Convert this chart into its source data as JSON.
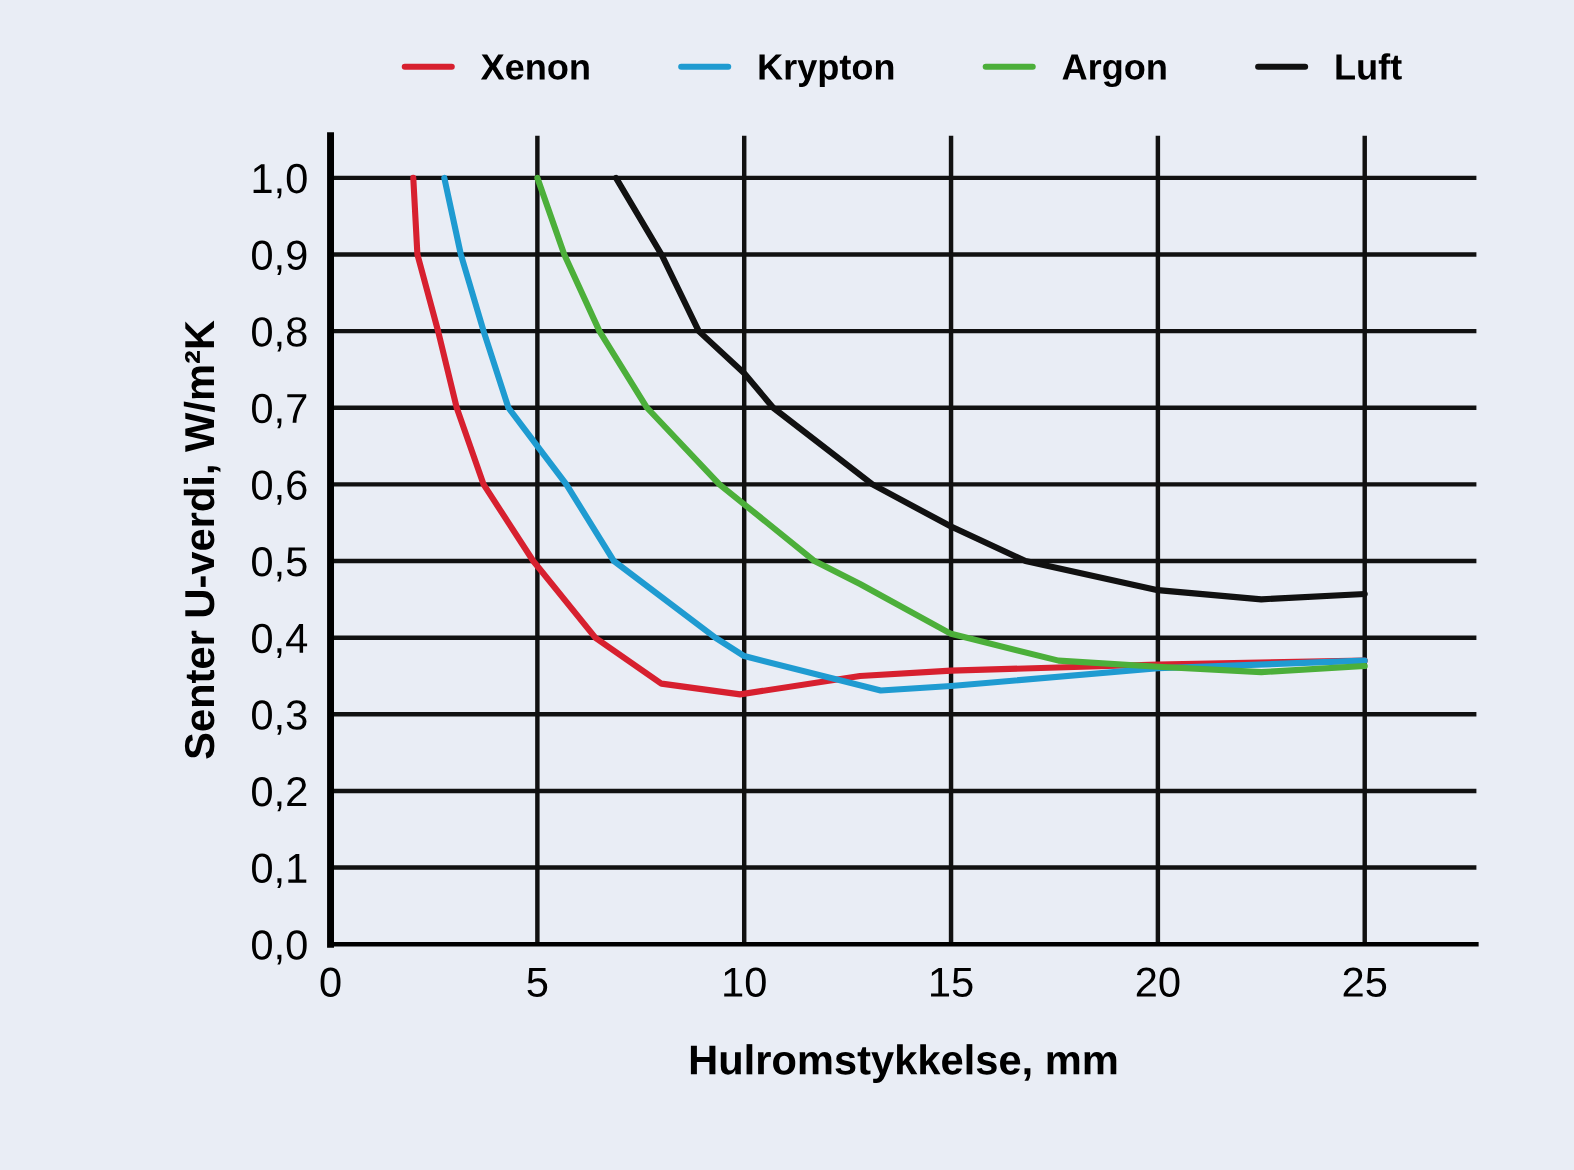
{
  "chart_data": {
    "type": "line",
    "xlabel": "Hulromstykkelse, mm",
    "ylabel": "Senter U-verdi, W/m²K",
    "xlim": [
      0,
      27.7
    ],
    "ylim": [
      0,
      1.055
    ],
    "xticks": [
      0,
      5,
      10,
      15,
      20,
      25
    ],
    "yticks": [
      {
        "value": 0,
        "label": "0,0"
      },
      {
        "value": 0.1,
        "label": "0,1"
      },
      {
        "value": 0.2,
        "label": "0,2"
      },
      {
        "value": 0.3,
        "label": "0,3"
      },
      {
        "value": 0.4,
        "label": "0,4"
      },
      {
        "value": 0.5,
        "label": "0,5"
      },
      {
        "value": 0.6,
        "label": "0,6"
      },
      {
        "value": 0.7,
        "label": "0,7"
      },
      {
        "value": 0.8,
        "label": "0,8"
      },
      {
        "value": 0.9,
        "label": "0,9"
      },
      {
        "value": 1.0,
        "label": "1,0"
      }
    ],
    "grid": true,
    "legend": "top",
    "marker": "none",
    "line_style": "solid",
    "series": [
      {
        "name": "Xenon",
        "color": "#d7202f",
        "x": [
          2.0,
          2.1,
          2.6,
          3.05,
          3.7,
          4.9,
          6.4,
          8.0,
          9.9,
          12.8,
          15,
          20,
          25
        ],
        "values": [
          1.0,
          0.9,
          0.8,
          0.7,
          0.6,
          0.5,
          0.4,
          0.34,
          0.326,
          0.35,
          0.357,
          0.365,
          0.37
        ]
      },
      {
        "name": "Krypton",
        "color": "#1f9bd1",
        "x": [
          2.75,
          3.15,
          3.7,
          4.3,
          5.0,
          5.7,
          6.85,
          9.3,
          10,
          13.3,
          15,
          20,
          25
        ],
        "values": [
          1.0,
          0.9,
          0.8,
          0.7,
          0.65,
          0.6,
          0.5,
          0.4,
          0.376,
          0.331,
          0.337,
          0.36,
          0.37
        ]
      },
      {
        "name": "Argon",
        "color": "#4caf3a",
        "x": [
          5.0,
          5.65,
          6.5,
          7.65,
          9.4,
          10,
          11.7,
          12.8,
          15,
          17.6,
          20,
          22.5,
          25
        ],
        "values": [
          1.0,
          0.9,
          0.8,
          0.7,
          0.6,
          0.574,
          0.5,
          0.47,
          0.405,
          0.37,
          0.362,
          0.355,
          0.363
        ]
      },
      {
        "name": "Luft",
        "color": "#111111",
        "x": [
          6.9,
          8.0,
          8.9,
          10,
          10.7,
          13.1,
          15,
          16.8,
          20,
          22.5,
          25
        ],
        "values": [
          1.0,
          0.9,
          0.8,
          0.745,
          0.7,
          0.6,
          0.545,
          0.5,
          0.462,
          0.45,
          0.457
        ]
      }
    ]
  }
}
